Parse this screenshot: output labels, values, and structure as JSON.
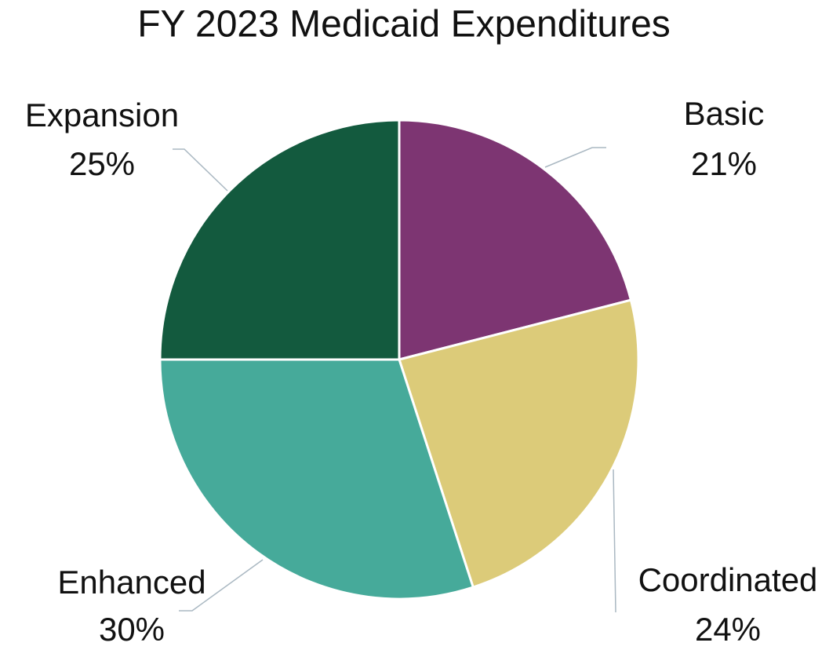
{
  "chart_data": {
    "type": "pie",
    "title": "FY 2023 Medicaid Expenditures",
    "categories": [
      "Basic",
      "Coordinated",
      "Enhanced",
      "Expansion"
    ],
    "values": [
      21,
      24,
      30,
      25
    ],
    "value_labels": [
      "21%",
      "24%",
      "30%",
      "25%"
    ],
    "colors": [
      "#7d3572",
      "#dccb79",
      "#46aa9a",
      "#135a3e"
    ]
  }
}
